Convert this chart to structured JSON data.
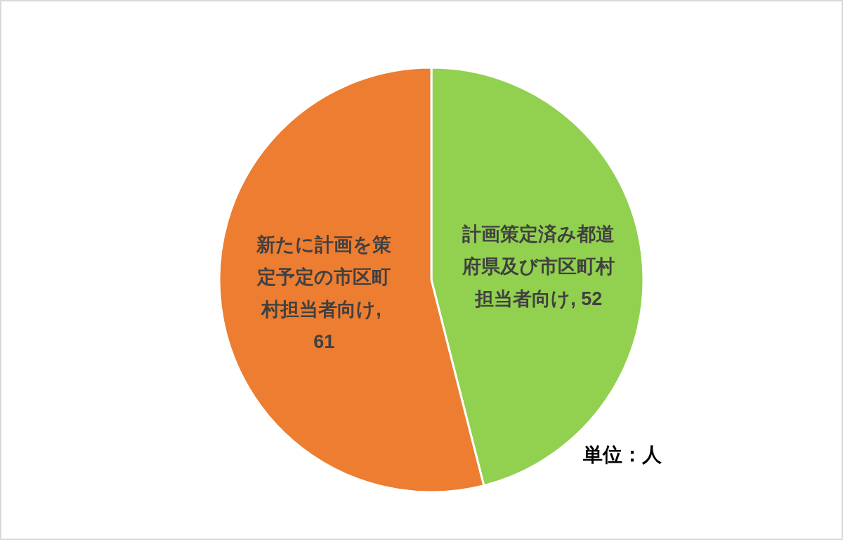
{
  "chart_data": {
    "type": "pie",
    "categories": [
      "計画策定済み都道府県及び市区町村担当者向け",
      "新たに計画を策定予定の市区町村担当者向け"
    ],
    "values": [
      52,
      61
    ],
    "value_labels": [
      ", 52",
      ", 61"
    ],
    "colors": [
      "#92d050",
      "#ed7d31"
    ],
    "annotations": [
      "単位：人"
    ]
  }
}
